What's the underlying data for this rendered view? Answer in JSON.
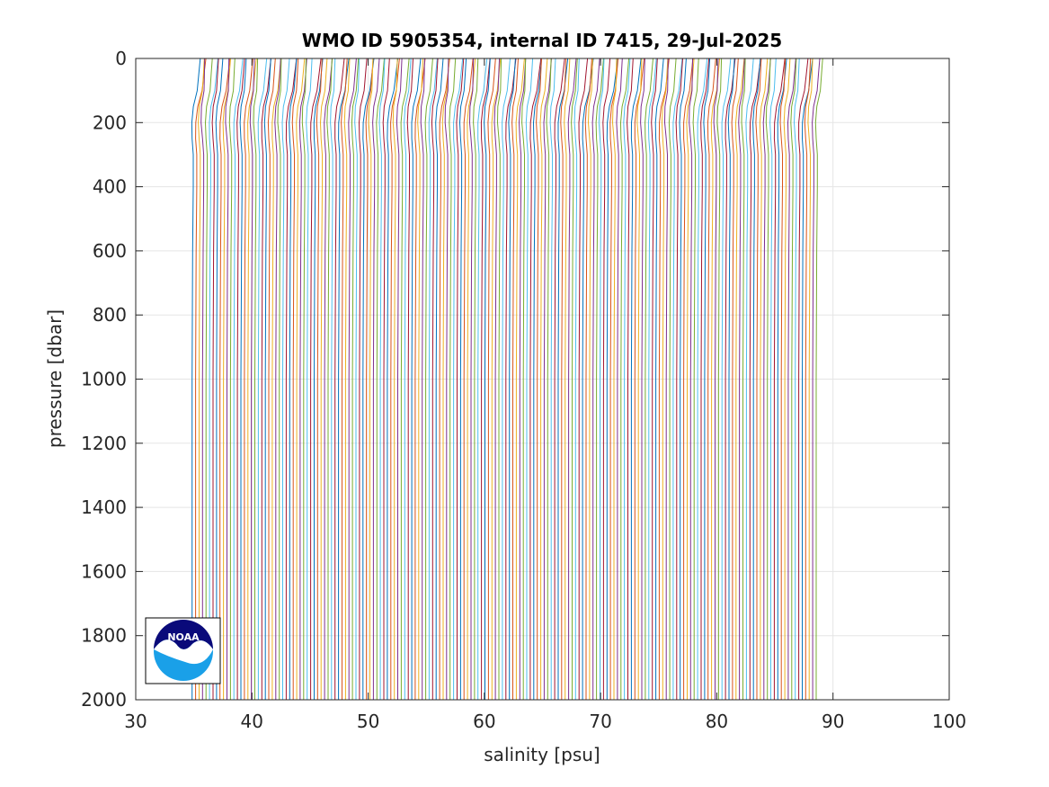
{
  "chart_data": {
    "type": "line",
    "title": "WMO ID 5905354, internal ID 7415, 29-Jul-2025",
    "xlabel": "salinity [psu]",
    "ylabel": "pressure [dbar]",
    "xlim": [
      30,
      100
    ],
    "ylim": [
      0,
      2000
    ],
    "y_reversed": true,
    "grid": true,
    "xticks": [
      "30",
      "40",
      "50",
      "60",
      "70",
      "80",
      "90",
      "100"
    ],
    "yticks": [
      "0",
      "200",
      "400",
      "600",
      "800",
      "1000",
      "1200",
      "1400",
      "1600",
      "1800",
      "2000"
    ],
    "profile_offset_psu": 0.3,
    "profile_count": 180,
    "series_template": {
      "pressure": [
        0,
        50,
        100,
        150,
        200,
        250,
        300,
        400,
        600,
        1000,
        1400,
        2000
      ],
      "salinity_base": [
        35.4,
        35.3,
        35.2,
        34.9,
        34.8,
        34.85,
        34.95,
        34.95,
        34.9,
        34.85,
        34.85,
        34.85
      ]
    },
    "colors": [
      "#0072BD",
      "#D95319",
      "#EDB120",
      "#7E2F8E",
      "#77AC30",
      "#4DBEEE",
      "#A2142F"
    ]
  },
  "logo": {
    "text": "NOAA",
    "colors": {
      "dark": "#0a0a7a",
      "light": "#1aa0e8"
    }
  }
}
